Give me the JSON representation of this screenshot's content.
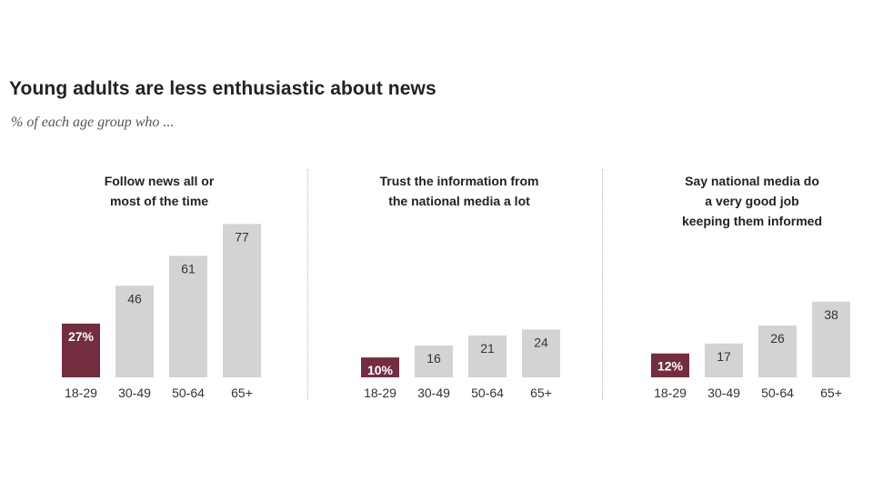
{
  "title": "Young adults are less enthusiastic about news",
  "subtitle": "% of each age group who ...",
  "colors": {
    "highlight": "#732d3f",
    "bar": "#d3d3d3",
    "label_dark": "#333333",
    "label_light": "#ffffff"
  },
  "chart_data": [
    {
      "type": "bar",
      "title": "Follow news all or most of the time",
      "title_lines": [
        "Follow news all or",
        "most of the time"
      ],
      "categories": [
        "18-29",
        "30-49",
        "50-64",
        "65+"
      ],
      "values": [
        27,
        46,
        61,
        77
      ],
      "value_labels": [
        "27%",
        "46",
        "61",
        "77"
      ],
      "highlight_index": 0,
      "ylim": [
        0,
        80
      ],
      "xlabel": "",
      "ylabel": ""
    },
    {
      "type": "bar",
      "title": "Trust the information from the national media a lot",
      "title_lines": [
        "Trust the information from",
        "the national media a lot"
      ],
      "categories": [
        "18-29",
        "30-49",
        "50-64",
        "65+"
      ],
      "values": [
        10,
        16,
        21,
        24
      ],
      "value_labels": [
        "10%",
        "16",
        "21",
        "24"
      ],
      "highlight_index": 0,
      "ylim": [
        0,
        80
      ],
      "xlabel": "",
      "ylabel": ""
    },
    {
      "type": "bar",
      "title": "Say national media do a very good job keeping them informed",
      "title_lines": [
        "Say national media do",
        "a very good job",
        "keeping them informed"
      ],
      "categories": [
        "18-29",
        "30-49",
        "50-64",
        "65+"
      ],
      "values": [
        12,
        17,
        26,
        38
      ],
      "value_labels": [
        "12%",
        "17",
        "26",
        "38"
      ],
      "highlight_index": 0,
      "ylim": [
        0,
        80
      ],
      "xlabel": "",
      "ylabel": ""
    }
  ]
}
